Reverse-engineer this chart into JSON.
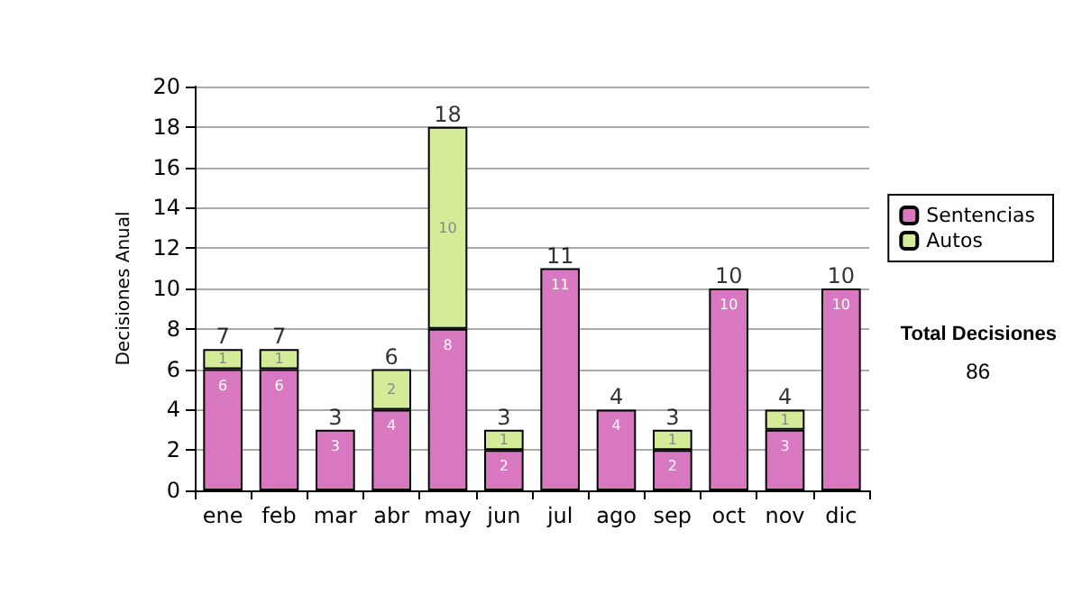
{
  "chart_data": {
    "type": "bar",
    "stacked": true,
    "ylabel": "Decisiones Anual",
    "categories": [
      "ene",
      "feb",
      "mar",
      "abr",
      "may",
      "jun",
      "jul",
      "ago",
      "sep",
      "oct",
      "nov",
      "dic"
    ],
    "series": [
      {
        "name": "Sentencias",
        "color": "#d878c0",
        "values": [
          6,
          6,
          3,
          4,
          8,
          2,
          11,
          4,
          2,
          10,
          3,
          10
        ]
      },
      {
        "name": "Autos",
        "color": "#d4ec98",
        "values": [
          1,
          1,
          null,
          2,
          10,
          1,
          null,
          null,
          1,
          null,
          1,
          null
        ]
      }
    ],
    "totals": [
      "7",
      "7",
      "3",
      "6",
      "18",
      "3",
      "11",
      "4",
      "3",
      "10",
      "4",
      "10"
    ],
    "data_labels": true,
    "ylim": [
      0,
      20
    ],
    "yticks": [
      0,
      2,
      4,
      6,
      8,
      10,
      12,
      14,
      16,
      18,
      20
    ],
    "grid": "y",
    "legend": "right",
    "annotations": [
      "Total Decisiones",
      "86"
    ]
  }
}
